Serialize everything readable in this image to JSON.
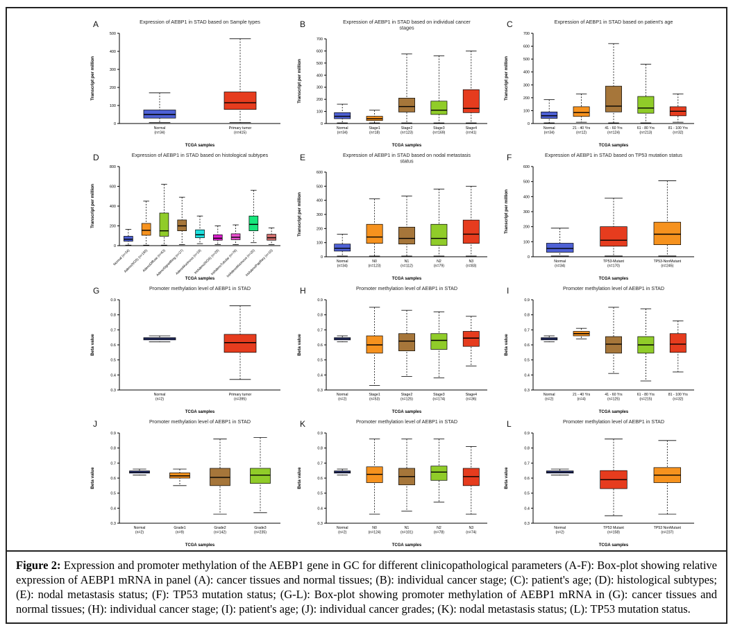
{
  "figure": {
    "caption_label": "Figure 2:",
    "caption_text": " Expression and promoter methylation of the AEBP1 gene in GC for different clinicopathological parameters (A-F): Box-plot showing relative expression of AEBP1 mRNA in panel (A): cancer tissues and normal tissues; (B): individual cancer stage; (C): patient's age; (D): histological subtypes; (E): nodal metastasis status; (F): TP53 mutation status; (G-L): Box-plot showing promoter methylation of AEBP1 mRNA in (G): cancer tissues and normal tissues; (H): individual cancer stage; (I): patient's age; (J): individual cancer grades; (K): nodal metastasis status; (L): TP53 mutation status."
  },
  "colors": {
    "blue": "#4e61d5",
    "orange": "#f6921e",
    "brown": "#a6763a",
    "green": "#90cc29",
    "red": "#e63c1e",
    "cyan": "#1ddfdd",
    "magenta": "#de1fd0",
    "pink": "#e84fcf",
    "springgreen": "#17e67c",
    "salmon": "#d4706f"
  },
  "chart_data": [
    {
      "type": "box",
      "letter": "A",
      "title_lines": [
        "Expression of AEBP1 in STAD based on Sample types"
      ],
      "ylabel": "Transcript per million",
      "xlabel": "TCGA samples",
      "ylim": [
        0,
        500
      ],
      "yticks": [
        0,
        100,
        200,
        300,
        400,
        500
      ],
      "rotate_labels": false,
      "boxes": [
        {
          "label": "Normal",
          "n": "(n=34)",
          "color": "blue",
          "low": 5,
          "q1": 30,
          "med": 50,
          "q3": 75,
          "high": 170
        },
        {
          "label": "Primary tumor",
          "n": "(n=415)",
          "color": "red",
          "low": 5,
          "q1": 78,
          "med": 115,
          "q3": 175,
          "high": 470
        }
      ]
    },
    {
      "type": "box",
      "letter": "B",
      "title_lines": [
        "Expression of AEBP1 in STAD based on individual cancer",
        "stages"
      ],
      "ylabel": "Transcript per million",
      "xlabel": "TCGA samples",
      "ylim": [
        0,
        700
      ],
      "yticks": [
        0,
        100,
        200,
        300,
        400,
        500,
        600,
        700
      ],
      "rotate_labels": false,
      "boxes": [
        {
          "label": "Normal",
          "n": "(n=34)",
          "color": "blue",
          "low": 5,
          "q1": 40,
          "med": 60,
          "q3": 90,
          "high": 160
        },
        {
          "label": "Stage1",
          "n": "(n=18)",
          "color": "orange",
          "low": 5,
          "q1": 25,
          "med": 40,
          "q3": 60,
          "high": 110
        },
        {
          "label": "Stage2",
          "n": "(n=123)",
          "color": "brown",
          "low": 5,
          "q1": 95,
          "med": 140,
          "q3": 210,
          "high": 575
        },
        {
          "label": "Stage3",
          "n": "(n=169)",
          "color": "green",
          "low": 5,
          "q1": 75,
          "med": 110,
          "q3": 185,
          "high": 560
        },
        {
          "label": "Stage4",
          "n": "(n=41)",
          "color": "red",
          "low": 5,
          "q1": 90,
          "med": 125,
          "q3": 280,
          "high": 600
        }
      ]
    },
    {
      "type": "box",
      "letter": "C",
      "title_lines": [
        "Expression of AEBP1 in STAD based on patient's age"
      ],
      "ylabel": "Transcript per million",
      "xlabel": "TCGA samples",
      "ylim": [
        0,
        700
      ],
      "yticks": [
        0,
        100,
        200,
        300,
        400,
        500,
        600,
        700
      ],
      "rotate_labels": false,
      "boxes": [
        {
          "label": "Normal",
          "n": "(n=34)",
          "color": "blue",
          "low": 5,
          "q1": 40,
          "med": 60,
          "q3": 90,
          "high": 185
        },
        {
          "label": "21 - 40 Yrs",
          "n": "(n=12)",
          "color": "orange",
          "low": 10,
          "q1": 55,
          "med": 85,
          "q3": 130,
          "high": 230
        },
        {
          "label": "41 - 60 Yrs",
          "n": "(n=124)",
          "color": "brown",
          "low": 5,
          "q1": 90,
          "med": 135,
          "q3": 290,
          "high": 620
        },
        {
          "label": "61 - 80 Yrs",
          "n": "(n=213)",
          "color": "green",
          "low": 5,
          "q1": 80,
          "med": 120,
          "q3": 210,
          "high": 460
        },
        {
          "label": "81 - 100 Yrs",
          "n": "(n=32)",
          "color": "red",
          "low": 10,
          "q1": 60,
          "med": 95,
          "q3": 130,
          "high": 230
        }
      ]
    },
    {
      "type": "box",
      "letter": "D",
      "title_lines": [
        "Expression of AEBP1 in STAD based on histological subtypes"
      ],
      "ylabel": "Transcript per million",
      "xlabel": "TCGA samples",
      "ylim": [
        0,
        800
      ],
      "yticks": [
        0,
        200,
        400,
        600,
        800
      ],
      "rotate_labels": true,
      "boxes": [
        {
          "label": "Normal",
          "n": "(n=34)",
          "color": "blue",
          "low": 5,
          "q1": 45,
          "med": 65,
          "q3": 95,
          "high": 165
        },
        {
          "label": "Adeno(NOS)",
          "n": "(n=155)",
          "color": "orange",
          "low": 5,
          "q1": 105,
          "med": 155,
          "q3": 225,
          "high": 450
        },
        {
          "label": "AdenoDiffuse",
          "n": "(n=63)",
          "color": "green",
          "low": 5,
          "q1": 95,
          "med": 150,
          "q3": 330,
          "high": 620
        },
        {
          "label": "AdenoSignetRing",
          "n": "(n=27)",
          "color": "brown",
          "low": 10,
          "q1": 150,
          "med": 200,
          "q3": 260,
          "high": 490
        },
        {
          "label": "AdenoMucinous",
          "n": "(n=19)",
          "color": "cyan",
          "low": 20,
          "q1": 80,
          "med": 110,
          "q3": 160,
          "high": 300
        },
        {
          "label": "IntAdeno(NOS)",
          "n": "(n=25)",
          "color": "magenta",
          "low": 10,
          "q1": 55,
          "med": 75,
          "q3": 110,
          "high": 200
        },
        {
          "label": "IntAdenoTubular",
          "n": "(n=76)",
          "color": "pink",
          "low": 10,
          "q1": 60,
          "med": 85,
          "q3": 120,
          "high": 210
        },
        {
          "label": "IntAdenoMucinous",
          "n": "(n=20)",
          "color": "springgreen",
          "low": 30,
          "q1": 150,
          "med": 215,
          "q3": 300,
          "high": 560
        },
        {
          "label": "IntAdenoPapillary",
          "n": "(n=10)",
          "color": "salmon",
          "low": 10,
          "q1": 55,
          "med": 80,
          "q3": 115,
          "high": 180
        }
      ]
    },
    {
      "type": "box",
      "letter": "E",
      "title_lines": [
        "Expression of AEBP1 in STAD based on nodal metastasis",
        "status"
      ],
      "ylabel": "Transcript per million",
      "xlabel": "TCGA samples",
      "ylim": [
        0,
        600
      ],
      "yticks": [
        0,
        100,
        200,
        300,
        400,
        500,
        600
      ],
      "rotate_labels": false,
      "boxes": [
        {
          "label": "Normal",
          "n": "(n=34)",
          "color": "blue",
          "low": 5,
          "q1": 40,
          "med": 60,
          "q3": 90,
          "high": 160
        },
        {
          "label": "N0",
          "n": "(n=123)",
          "color": "orange",
          "low": 5,
          "q1": 95,
          "med": 140,
          "q3": 230,
          "high": 410
        },
        {
          "label": "N1",
          "n": "(n=112)",
          "color": "brown",
          "low": 5,
          "q1": 90,
          "med": 130,
          "q3": 210,
          "high": 430
        },
        {
          "label": "N2",
          "n": "(n=79)",
          "color": "green",
          "low": 5,
          "q1": 80,
          "med": 130,
          "q3": 230,
          "high": 480
        },
        {
          "label": "N3",
          "n": "(n=83)",
          "color": "red",
          "low": 5,
          "q1": 95,
          "med": 160,
          "q3": 260,
          "high": 500
        }
      ]
    },
    {
      "type": "box",
      "letter": "F",
      "title_lines": [
        "Expression of AEBP1 in STAD based on TP53 mutation status"
      ],
      "ylabel": "Transcript per million",
      "xlabel": "TCGA samples",
      "ylim": [
        0,
        600
      ],
      "yticks": [
        0,
        100,
        200,
        300,
        400,
        500,
        600
      ],
      "rotate_labels": false,
      "boxes": [
        {
          "label": "Normal",
          "n": "(n=34)",
          "color": "blue",
          "low": 5,
          "q1": 30,
          "med": 55,
          "q3": 90,
          "high": 190
        },
        {
          "label": "TP53-Mutant",
          "n": "(n=170)",
          "color": "red",
          "low": 5,
          "q1": 70,
          "med": 110,
          "q3": 200,
          "high": 390
        },
        {
          "label": "TP53-NonMutant",
          "n": "(n=245)",
          "color": "orange",
          "low": 5,
          "q1": 80,
          "med": 150,
          "q3": 230,
          "high": 505
        }
      ]
    },
    {
      "type": "box",
      "letter": "G",
      "title_lines": [
        "Promoter methylation level of AEBP1 in STAD"
      ],
      "ylabel": "Beta value",
      "xlabel": "TCGA samples",
      "ylim": [
        0.3,
        0.9
      ],
      "yticks": [
        0.3,
        0.4,
        0.5,
        0.6,
        0.7,
        0.8,
        0.9
      ],
      "rotate_labels": false,
      "boxes": [
        {
          "label": "Normal",
          "n": "(n=2)",
          "color": "blue",
          "low": 0.62,
          "q1": 0.633,
          "med": 0.64,
          "q3": 0.648,
          "high": 0.66
        },
        {
          "label": "Primary tumor",
          "n": "(n=395)",
          "color": "red",
          "low": 0.37,
          "q1": 0.55,
          "med": 0.615,
          "q3": 0.67,
          "high": 0.86
        }
      ]
    },
    {
      "type": "box",
      "letter": "H",
      "title_lines": [
        "Promoter methylation level of AEBP1 in STAD"
      ],
      "ylabel": "Beta value",
      "xlabel": "TCGA samples",
      "ylim": [
        0.3,
        0.9
      ],
      "yticks": [
        0.3,
        0.4,
        0.5,
        0.6,
        0.7,
        0.8,
        0.9
      ],
      "rotate_labels": false,
      "boxes": [
        {
          "label": "Normal",
          "n": "(n=2)",
          "color": "blue",
          "low": 0.62,
          "q1": 0.633,
          "med": 0.64,
          "q3": 0.648,
          "high": 0.66
        },
        {
          "label": "Stage1",
          "n": "(n=53)",
          "color": "orange",
          "low": 0.33,
          "q1": 0.545,
          "med": 0.6,
          "q3": 0.66,
          "high": 0.85
        },
        {
          "label": "Stage2",
          "n": "(n=125)",
          "color": "brown",
          "low": 0.39,
          "q1": 0.56,
          "med": 0.625,
          "q3": 0.675,
          "high": 0.83
        },
        {
          "label": "Stage3",
          "n": "(n=174)",
          "color": "green",
          "low": 0.38,
          "q1": 0.57,
          "med": 0.63,
          "q3": 0.675,
          "high": 0.82
        },
        {
          "label": "Stage4",
          "n": "(n=36)",
          "color": "red",
          "low": 0.46,
          "q1": 0.59,
          "med": 0.645,
          "q3": 0.69,
          "high": 0.79
        }
      ]
    },
    {
      "type": "box",
      "letter": "I",
      "title_lines": [
        "Promoter methylation level of AEBP1 in STAD"
      ],
      "ylabel": "Beta value",
      "xlabel": "TCGA samples",
      "ylim": [
        0.3,
        0.9
      ],
      "yticks": [
        0.3,
        0.4,
        0.5,
        0.6,
        0.7,
        0.8,
        0.9
      ],
      "rotate_labels": false,
      "boxes": [
        {
          "label": "Normal",
          "n": "(n=2)",
          "color": "blue",
          "low": 0.62,
          "q1": 0.633,
          "med": 0.64,
          "q3": 0.648,
          "high": 0.66
        },
        {
          "label": "21 - 40 Yrs",
          "n": "(n=4)",
          "color": "orange",
          "low": 0.64,
          "q1": 0.66,
          "med": 0.675,
          "q3": 0.69,
          "high": 0.71
        },
        {
          "label": "41 - 60 Yrs",
          "n": "(n=125)",
          "color": "brown",
          "low": 0.41,
          "q1": 0.545,
          "med": 0.605,
          "q3": 0.655,
          "high": 0.85
        },
        {
          "label": "61 - 80 Yrs",
          "n": "(n=215)",
          "color": "green",
          "low": 0.36,
          "q1": 0.545,
          "med": 0.6,
          "q3": 0.655,
          "high": 0.84
        },
        {
          "label": "81 - 100 Yrs",
          "n": "(n=32)",
          "color": "red",
          "low": 0.42,
          "q1": 0.55,
          "med": 0.605,
          "q3": 0.675,
          "high": 0.76
        }
      ]
    },
    {
      "type": "box",
      "letter": "J",
      "title_lines": [
        "Promoter methylation level of AEBP1 in STAD"
      ],
      "ylabel": "Beta value",
      "xlabel": "TCGA samples",
      "ylim": [
        0.3,
        0.9
      ],
      "yticks": [
        0.3,
        0.4,
        0.5,
        0.6,
        0.7,
        0.8,
        0.9
      ],
      "rotate_labels": false,
      "boxes": [
        {
          "label": "Normal",
          "n": "(n=2)",
          "color": "blue",
          "low": 0.62,
          "q1": 0.633,
          "med": 0.64,
          "q3": 0.648,
          "high": 0.66
        },
        {
          "label": "Grade1",
          "n": "(n=9)",
          "color": "orange",
          "low": 0.55,
          "q1": 0.6,
          "med": 0.615,
          "q3": 0.635,
          "high": 0.66
        },
        {
          "label": "Grade2",
          "n": "(n=142)",
          "color": "brown",
          "low": 0.36,
          "q1": 0.55,
          "med": 0.605,
          "q3": 0.665,
          "high": 0.86
        },
        {
          "label": "Grade3",
          "n": "(n=235)",
          "color": "green",
          "low": 0.37,
          "q1": 0.565,
          "med": 0.62,
          "q3": 0.665,
          "high": 0.87
        }
      ]
    },
    {
      "type": "box",
      "letter": "K",
      "title_lines": [
        "Promoter methylation level of AEBP1 in STAD"
      ],
      "ylabel": "Beta value",
      "xlabel": "TCGA samples",
      "ylim": [
        0.3,
        0.9
      ],
      "yticks": [
        0.3,
        0.4,
        0.5,
        0.6,
        0.7,
        0.8,
        0.9
      ],
      "rotate_labels": false,
      "boxes": [
        {
          "label": "Normal",
          "n": "(n=2)",
          "color": "blue",
          "low": 0.62,
          "q1": 0.633,
          "med": 0.64,
          "q3": 0.648,
          "high": 0.66
        },
        {
          "label": "N0",
          "n": "(n=124)",
          "color": "orange",
          "low": 0.36,
          "q1": 0.57,
          "med": 0.625,
          "q3": 0.675,
          "high": 0.86
        },
        {
          "label": "N1",
          "n": "(n=101)",
          "color": "brown",
          "low": 0.38,
          "q1": 0.555,
          "med": 0.61,
          "q3": 0.665,
          "high": 0.86
        },
        {
          "label": "N2",
          "n": "(n=78)",
          "color": "green",
          "low": 0.44,
          "q1": 0.585,
          "med": 0.64,
          "q3": 0.68,
          "high": 0.86
        },
        {
          "label": "N3",
          "n": "(n=74)",
          "color": "red",
          "low": 0.36,
          "q1": 0.55,
          "med": 0.61,
          "q3": 0.665,
          "high": 0.81
        }
      ]
    },
    {
      "type": "box",
      "letter": "L",
      "title_lines": [
        "Promoter methylation level of AEBP1 in STAD"
      ],
      "ylabel": "Beta value",
      "xlabel": "TCGA samples",
      "ylim": [
        0.3,
        0.9
      ],
      "yticks": [
        0.3,
        0.4,
        0.5,
        0.6,
        0.7,
        0.8,
        0.9
      ],
      "rotate_labels": false,
      "boxes": [
        {
          "label": "Normal",
          "n": "(n=2)",
          "color": "blue",
          "low": 0.62,
          "q1": 0.633,
          "med": 0.64,
          "q3": 0.648,
          "high": 0.66
        },
        {
          "label": "TP53 Mutant",
          "n": "(n=158)",
          "color": "red",
          "low": 0.35,
          "q1": 0.53,
          "med": 0.59,
          "q3": 0.65,
          "high": 0.86
        },
        {
          "label": "TP53 NonMutant",
          "n": "(n=237)",
          "color": "orange",
          "low": 0.36,
          "q1": 0.57,
          "med": 0.62,
          "q3": 0.67,
          "high": 0.85
        }
      ]
    }
  ]
}
